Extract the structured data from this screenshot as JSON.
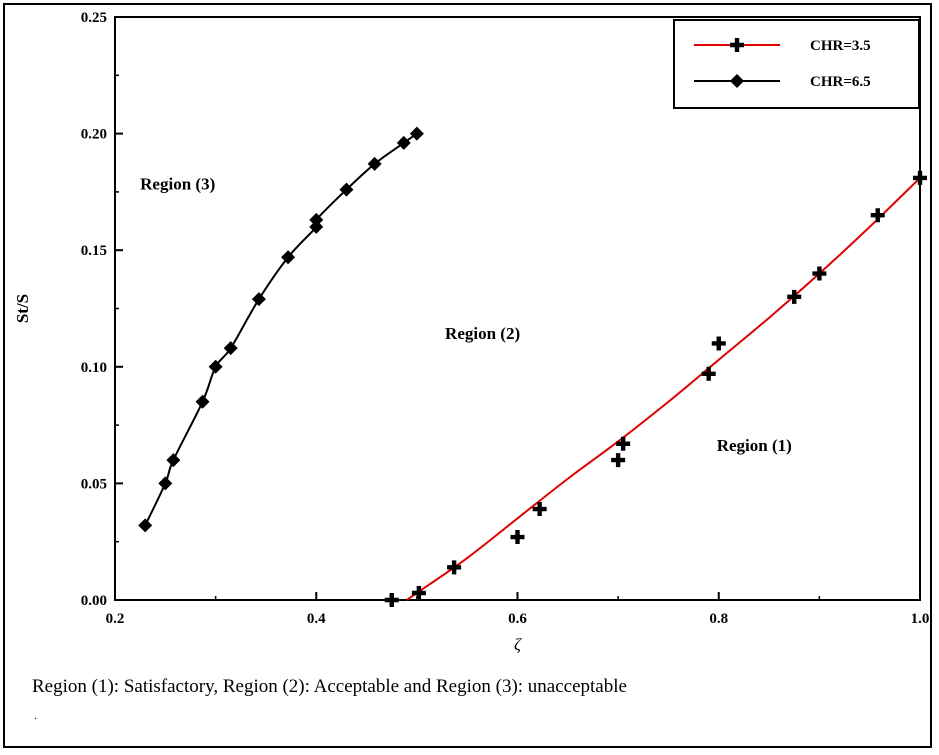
{
  "chart_data": {
    "type": "line",
    "xlabel": "ζ",
    "ylabel": "St/S",
    "xlim": [
      0.2,
      1.0
    ],
    "ylim": [
      0.0,
      0.25
    ],
    "xticks": [
      "0.2",
      "0.4",
      "0.6",
      "0.8",
      "1.0"
    ],
    "yticks": [
      "0.00",
      "0.05",
      "0.10",
      "0.15",
      "0.20",
      "0.25"
    ],
    "legend_position": "top-right",
    "series": [
      {
        "name": "CHR=3.5",
        "color": "#e00000",
        "marker": "plus",
        "points": [
          [
            0.475,
            0.0
          ],
          [
            0.502,
            0.003
          ],
          [
            0.537,
            0.014
          ],
          [
            0.6,
            0.027
          ],
          [
            0.622,
            0.039
          ],
          [
            0.7,
            0.06
          ],
          [
            0.705,
            0.067
          ],
          [
            0.79,
            0.097
          ],
          [
            0.8,
            0.11
          ],
          [
            0.875,
            0.13
          ],
          [
            0.9,
            0.14
          ],
          [
            0.958,
            0.165
          ],
          [
            1.0,
            0.181
          ]
        ],
        "fit": [
          [
            0.49,
            0.0
          ],
          [
            0.5,
            0.003
          ],
          [
            0.55,
            0.018
          ],
          [
            0.6,
            0.035
          ],
          [
            0.65,
            0.052
          ],
          [
            0.7,
            0.068
          ],
          [
            0.75,
            0.085
          ],
          [
            0.8,
            0.103
          ],
          [
            0.85,
            0.121
          ],
          [
            0.9,
            0.14
          ],
          [
            0.95,
            0.16
          ],
          [
            1.0,
            0.181
          ]
        ]
      },
      {
        "name": "CHR=6.5",
        "color": "#000000",
        "marker": "diamond",
        "points": [
          [
            0.23,
            0.032
          ],
          [
            0.25,
            0.05
          ],
          [
            0.258,
            0.06
          ],
          [
            0.287,
            0.085
          ],
          [
            0.3,
            0.1
          ],
          [
            0.315,
            0.108
          ],
          [
            0.343,
            0.129
          ],
          [
            0.372,
            0.147
          ],
          [
            0.4,
            0.16
          ],
          [
            0.4,
            0.163
          ],
          [
            0.43,
            0.176
          ],
          [
            0.458,
            0.187
          ],
          [
            0.487,
            0.196
          ],
          [
            0.5,
            0.2
          ]
        ]
      }
    ],
    "annotations": [
      {
        "text": "Region (3)",
        "x": 0.225,
        "y": 0.176
      },
      {
        "text": "Region (2)",
        "x": 0.528,
        "y": 0.112
      },
      {
        "text": "Region (1)",
        "x": 0.798,
        "y": 0.064
      }
    ]
  },
  "caption": "Region (1): Satisfactory, Region (2): Acceptable and Region (3): unacceptable",
  "caption_dot": "."
}
